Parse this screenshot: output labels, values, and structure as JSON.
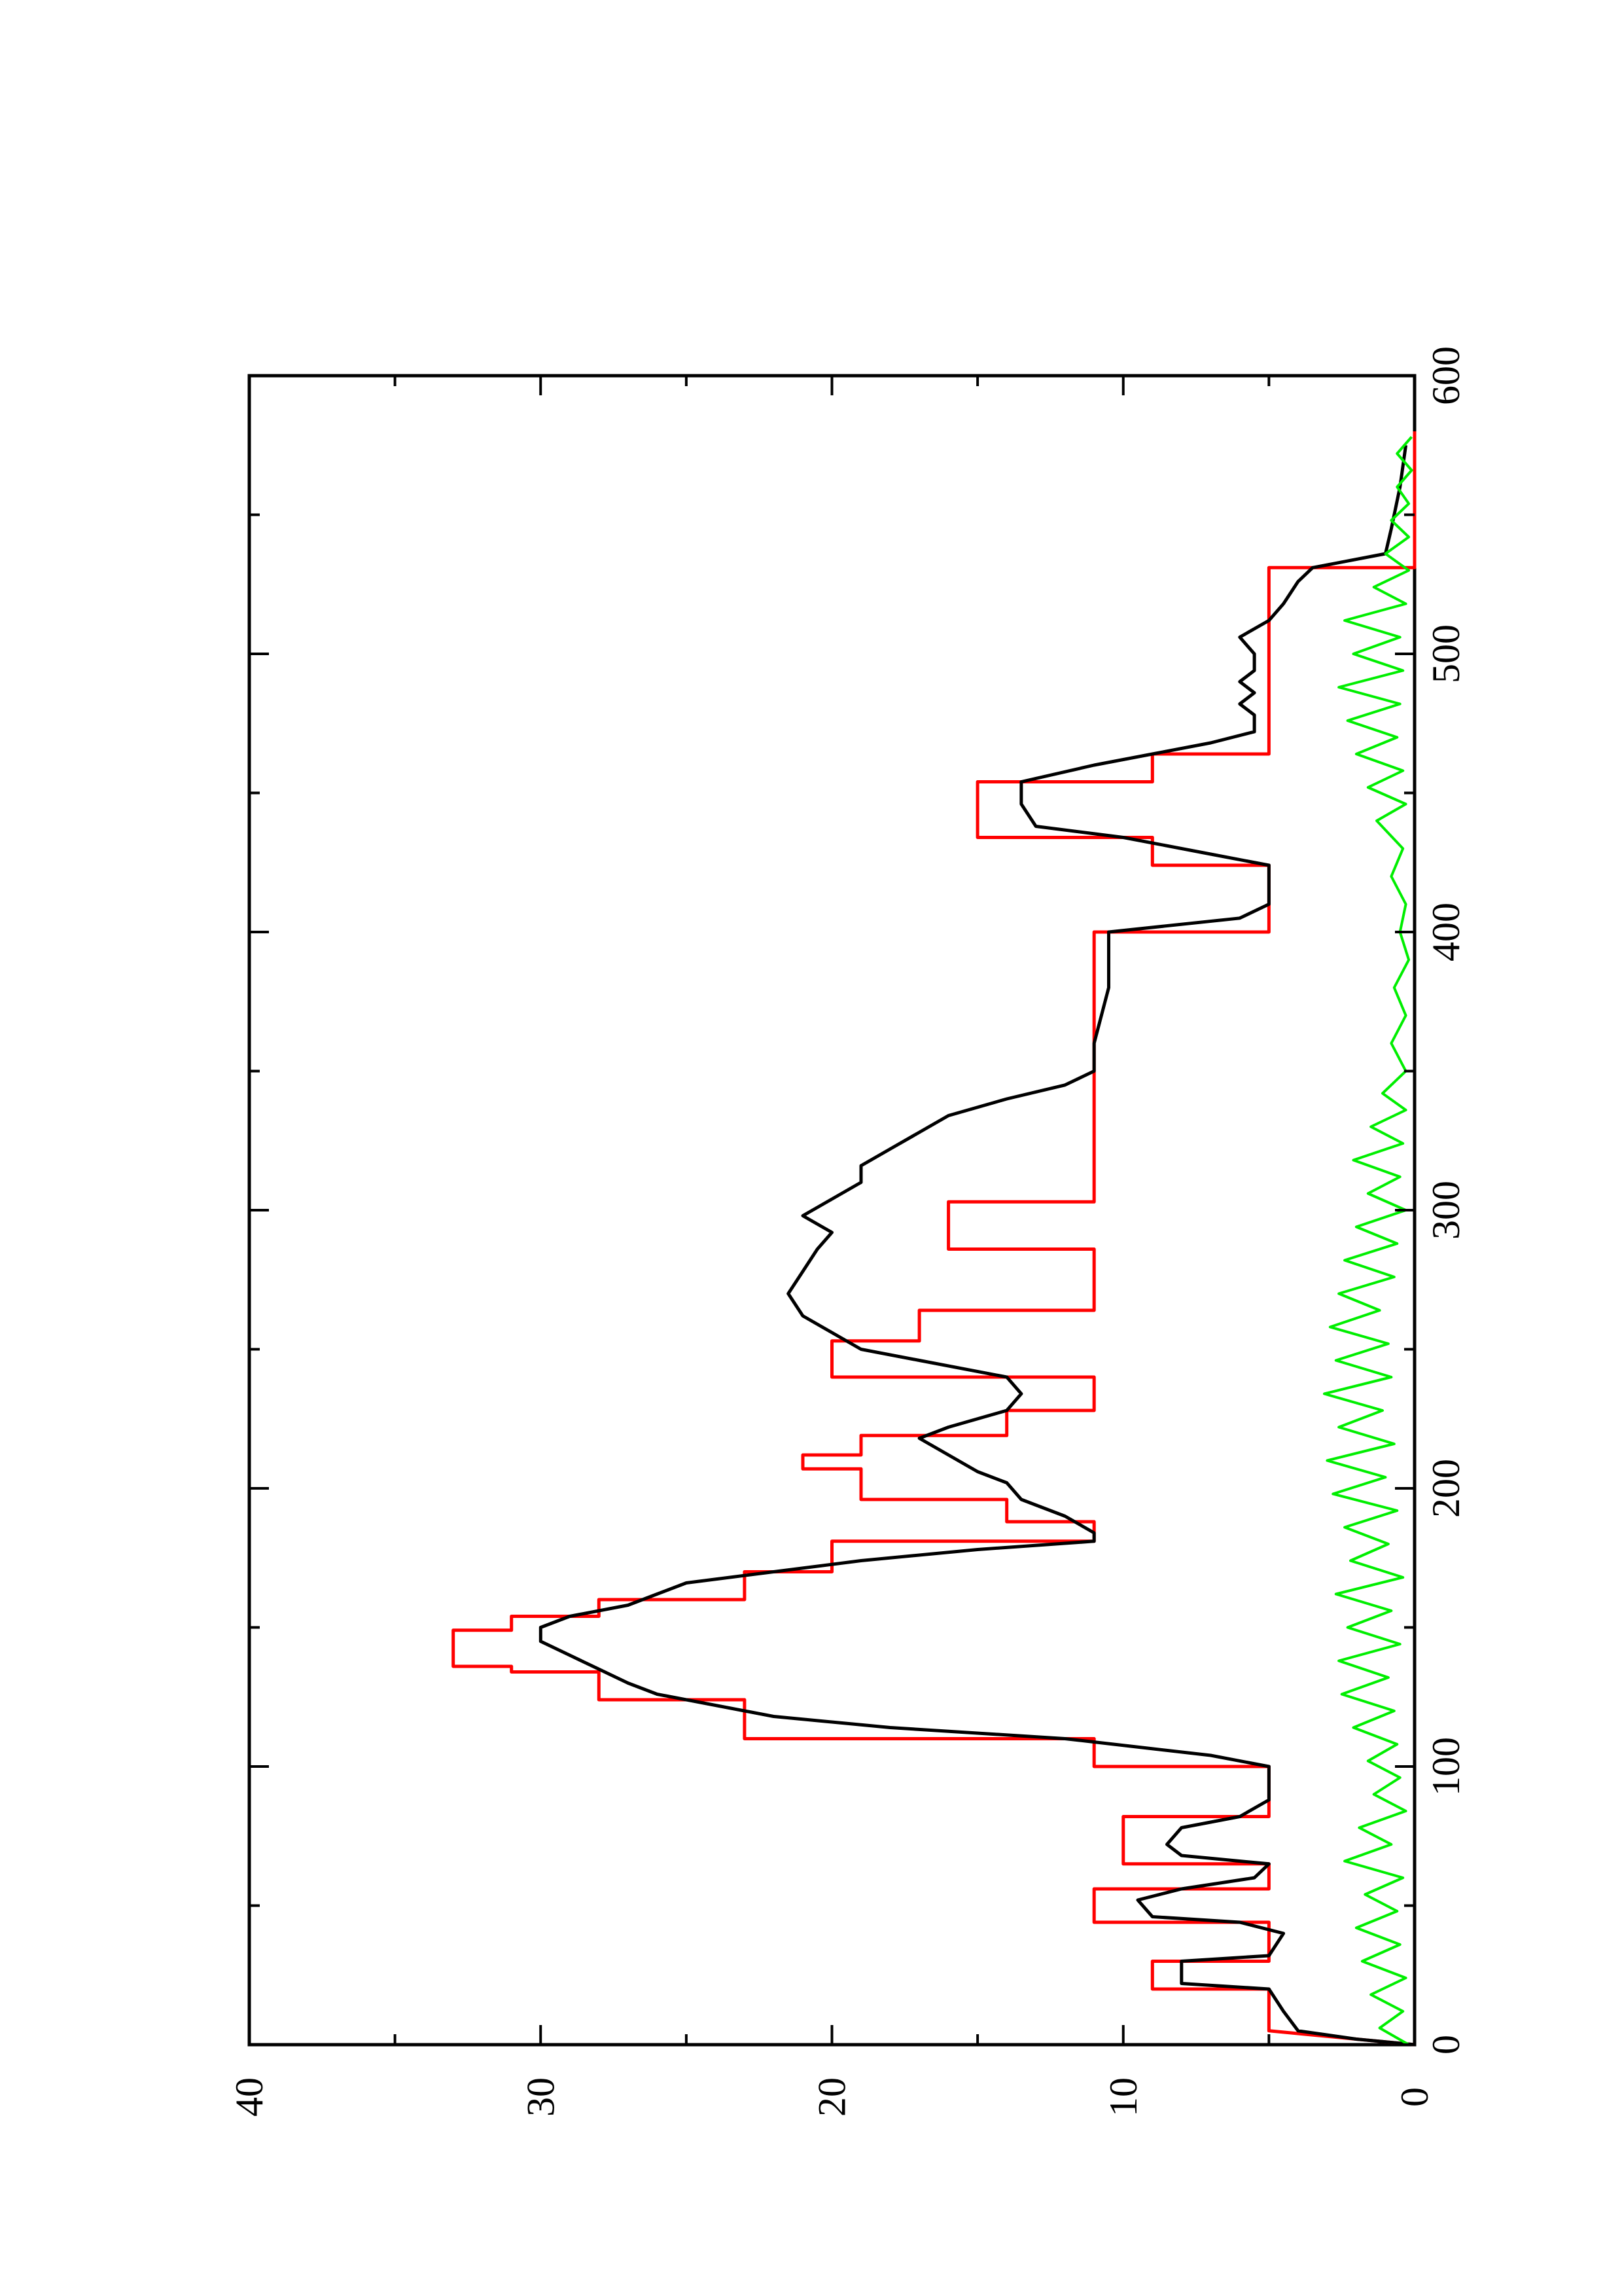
{
  "chart_data": {
    "type": "line",
    "orientation": "rotated-90-ccw",
    "xlim": [
      0,
      600
    ],
    "ylim": [
      0,
      40
    ],
    "x_ticks": [
      0,
      100,
      200,
      300,
      400,
      500,
      600
    ],
    "y_ticks": [
      0,
      10,
      20,
      30,
      40
    ],
    "x_tick_labels": [
      "0",
      "100",
      "200",
      "300",
      "400",
      "500",
      "600"
    ],
    "y_tick_labels": [
      "0",
      "10",
      "20",
      "30",
      "40"
    ],
    "grid": false,
    "series": [
      {
        "color": "#ff0000",
        "style": "step",
        "points": [
          [
            0,
            0
          ],
          [
            5,
            5
          ],
          [
            20,
            5
          ],
          [
            20,
            9
          ],
          [
            30,
            9
          ],
          [
            30,
            5
          ],
          [
            44,
            5
          ],
          [
            44,
            11
          ],
          [
            56,
            11
          ],
          [
            56,
            5
          ],
          [
            65,
            5
          ],
          [
            65,
            10
          ],
          [
            82,
            10
          ],
          [
            82,
            5
          ],
          [
            100,
            5
          ],
          [
            100,
            11
          ],
          [
            110,
            11
          ],
          [
            110,
            23
          ],
          [
            124,
            23
          ],
          [
            124,
            28
          ],
          [
            134,
            28
          ],
          [
            134,
            31
          ],
          [
            136,
            31
          ],
          [
            136,
            33
          ],
          [
            149,
            33
          ],
          [
            149,
            31
          ],
          [
            154,
            31
          ],
          [
            154,
            28
          ],
          [
            160,
            28
          ],
          [
            160,
            23
          ],
          [
            170,
            23
          ],
          [
            170,
            20
          ],
          [
            181,
            20
          ],
          [
            181,
            11
          ],
          [
            188,
            11
          ],
          [
            188,
            14
          ],
          [
            196,
            14
          ],
          [
            196,
            19
          ],
          [
            207,
            19
          ],
          [
            207,
            21
          ],
          [
            212,
            21
          ],
          [
            212,
            19
          ],
          [
            219,
            19
          ],
          [
            219,
            14
          ],
          [
            228,
            14
          ],
          [
            228,
            11
          ],
          [
            240,
            11
          ],
          [
            240,
            20
          ],
          [
            253,
            20
          ],
          [
            253,
            17
          ],
          [
            264,
            17
          ],
          [
            264,
            11
          ],
          [
            286,
            11
          ],
          [
            286,
            16
          ],
          [
            303,
            16
          ],
          [
            303,
            11
          ],
          [
            334,
            11
          ],
          [
            334,
            11
          ],
          [
            400,
            11
          ],
          [
            400,
            5
          ],
          [
            424,
            5
          ],
          [
            424,
            9
          ],
          [
            434,
            9
          ],
          [
            434,
            15
          ],
          [
            454,
            15
          ],
          [
            454,
            9
          ],
          [
            464,
            9
          ],
          [
            464,
            5
          ],
          [
            491,
            5
          ],
          [
            491,
            5
          ],
          [
            531,
            5
          ],
          [
            531,
            0
          ],
          [
            580,
            0
          ]
        ]
      },
      {
        "color": "#000000",
        "style": "line",
        "points": [
          [
            0,
            0
          ],
          [
            2,
            2
          ],
          [
            5,
            4
          ],
          [
            12,
            4.5
          ],
          [
            20,
            5
          ],
          [
            22,
            8
          ],
          [
            30,
            8
          ],
          [
            32,
            5
          ],
          [
            40,
            4.5
          ],
          [
            44,
            6
          ],
          [
            46,
            9
          ],
          [
            52,
            9.5
          ],
          [
            56,
            8
          ],
          [
            60,
            5.5
          ],
          [
            65,
            5
          ],
          [
            68,
            8
          ],
          [
            72,
            8.5
          ],
          [
            78,
            8
          ],
          [
            82,
            6
          ],
          [
            88,
            5
          ],
          [
            100,
            5
          ],
          [
            104,
            7
          ],
          [
            110,
            12
          ],
          [
            114,
            18
          ],
          [
            118,
            22
          ],
          [
            122,
            24
          ],
          [
            126,
            26
          ],
          [
            130,
            27
          ],
          [
            135,
            28
          ],
          [
            140,
            29
          ],
          [
            145,
            30
          ],
          [
            150,
            30
          ],
          [
            154,
            29
          ],
          [
            158,
            27
          ],
          [
            162,
            26
          ],
          [
            166,
            25
          ],
          [
            170,
            22
          ],
          [
            174,
            19
          ],
          [
            178,
            15
          ],
          [
            181,
            11
          ],
          [
            184,
            11
          ],
          [
            190,
            12
          ],
          [
            196,
            13.5
          ],
          [
            202,
            14
          ],
          [
            206,
            15
          ],
          [
            212,
            16
          ],
          [
            218,
            17
          ],
          [
            222,
            16
          ],
          [
            228,
            14
          ],
          [
            234,
            13.5
          ],
          [
            240,
            14
          ],
          [
            246,
            17
          ],
          [
            250,
            19
          ],
          [
            256,
            20
          ],
          [
            262,
            21
          ],
          [
            270,
            21.5
          ],
          [
            278,
            21
          ],
          [
            286,
            20.5
          ],
          [
            292,
            20
          ],
          [
            298,
            21
          ],
          [
            304,
            20
          ],
          [
            310,
            19
          ],
          [
            316,
            19
          ],
          [
            322,
            18
          ],
          [
            328,
            17
          ],
          [
            334,
            16
          ],
          [
            340,
            14
          ],
          [
            345,
            12
          ],
          [
            350,
            11
          ],
          [
            360,
            11
          ],
          [
            380,
            10.5
          ],
          [
            400,
            10.5
          ],
          [
            405,
            6
          ],
          [
            410,
            5
          ],
          [
            424,
            5
          ],
          [
            428,
            7
          ],
          [
            434,
            10
          ],
          [
            438,
            13
          ],
          [
            446,
            13.5
          ],
          [
            454,
            13.5
          ],
          [
            460,
            11
          ],
          [
            464,
            9
          ],
          [
            468,
            7
          ],
          [
            472,
            5.5
          ],
          [
            478,
            5.5
          ],
          [
            482,
            6
          ],
          [
            486,
            5.5
          ],
          [
            490,
            6
          ],
          [
            494,
            5.5
          ],
          [
            500,
            5.5
          ],
          [
            506,
            6
          ],
          [
            512,
            5
          ],
          [
            518,
            4.5
          ],
          [
            526,
            4
          ],
          [
            531,
            3.5
          ],
          [
            536,
            1
          ],
          [
            545,
            0.8
          ],
          [
            560,
            0.5
          ],
          [
            575,
            0.3
          ]
        ]
      },
      {
        "color": "#00ee00",
        "style": "noise",
        "amplitude": 2.5,
        "points": [
          [
            0,
            0.2
          ],
          [
            6,
            1.2
          ],
          [
            12,
            0.4
          ],
          [
            18,
            1.5
          ],
          [
            24,
            0.3
          ],
          [
            30,
            1.8
          ],
          [
            36,
            0.5
          ],
          [
            42,
            2.0
          ],
          [
            48,
            0.6
          ],
          [
            54,
            1.7
          ],
          [
            60,
            0.4
          ],
          [
            66,
            2.4
          ],
          [
            72,
            0.8
          ],
          [
            78,
            1.9
          ],
          [
            84,
            0.3
          ],
          [
            90,
            1.4
          ],
          [
            96,
            0.5
          ],
          [
            102,
            1.6
          ],
          [
            108,
            0.6
          ],
          [
            114,
            2.1
          ],
          [
            120,
            0.7
          ],
          [
            126,
            2.5
          ],
          [
            132,
            0.9
          ],
          [
            138,
            2.6
          ],
          [
            144,
            0.5
          ],
          [
            150,
            2.3
          ],
          [
            156,
            0.8
          ],
          [
            162,
            2.7
          ],
          [
            168,
            0.4
          ],
          [
            174,
            2.2
          ],
          [
            180,
            0.9
          ],
          [
            186,
            2.4
          ],
          [
            192,
            0.6
          ],
          [
            198,
            2.8
          ],
          [
            204,
            1.0
          ],
          [
            210,
            3.0
          ],
          [
            216,
            0.7
          ],
          [
            222,
            2.6
          ],
          [
            228,
            1.1
          ],
          [
            234,
            3.1
          ],
          [
            240,
            0.8
          ],
          [
            246,
            2.7
          ],
          [
            252,
            0.9
          ],
          [
            258,
            2.9
          ],
          [
            264,
            1.2
          ],
          [
            270,
            2.6
          ],
          [
            276,
            0.7
          ],
          [
            282,
            2.4
          ],
          [
            288,
            0.6
          ],
          [
            294,
            2.0
          ],
          [
            300,
            0.3
          ],
          [
            306,
            1.6
          ],
          [
            312,
            0.5
          ],
          [
            318,
            2.1
          ],
          [
            324,
            0.4
          ],
          [
            330,
            1.5
          ],
          [
            336,
            0.3
          ],
          [
            342,
            1.1
          ],
          [
            350,
            0.3
          ],
          [
            360,
            0.8
          ],
          [
            370,
            0.3
          ],
          [
            380,
            0.7
          ],
          [
            390,
            0.2
          ],
          [
            400,
            0.5
          ],
          [
            410,
            0.3
          ],
          [
            420,
            0.8
          ],
          [
            430,
            0.4
          ],
          [
            440,
            1.3
          ],
          [
            446,
            0.3
          ],
          [
            452,
            1.6
          ],
          [
            458,
            0.4
          ],
          [
            464,
            2.0
          ],
          [
            470,
            0.6
          ],
          [
            476,
            2.3
          ],
          [
            482,
            0.5
          ],
          [
            488,
            2.6
          ],
          [
            494,
            0.4
          ],
          [
            500,
            2.1
          ],
          [
            506,
            0.5
          ],
          [
            512,
            2.4
          ],
          [
            518,
            0.3
          ],
          [
            524,
            1.4
          ],
          [
            530,
            0.2
          ],
          [
            536,
            1.0
          ],
          [
            542,
            0.2
          ],
          [
            548,
            0.8
          ],
          [
            554,
            0.2
          ],
          [
            560,
            0.6
          ],
          [
            566,
            0.1
          ],
          [
            572,
            0.6
          ],
          [
            578,
            0.1
          ]
        ]
      }
    ]
  }
}
